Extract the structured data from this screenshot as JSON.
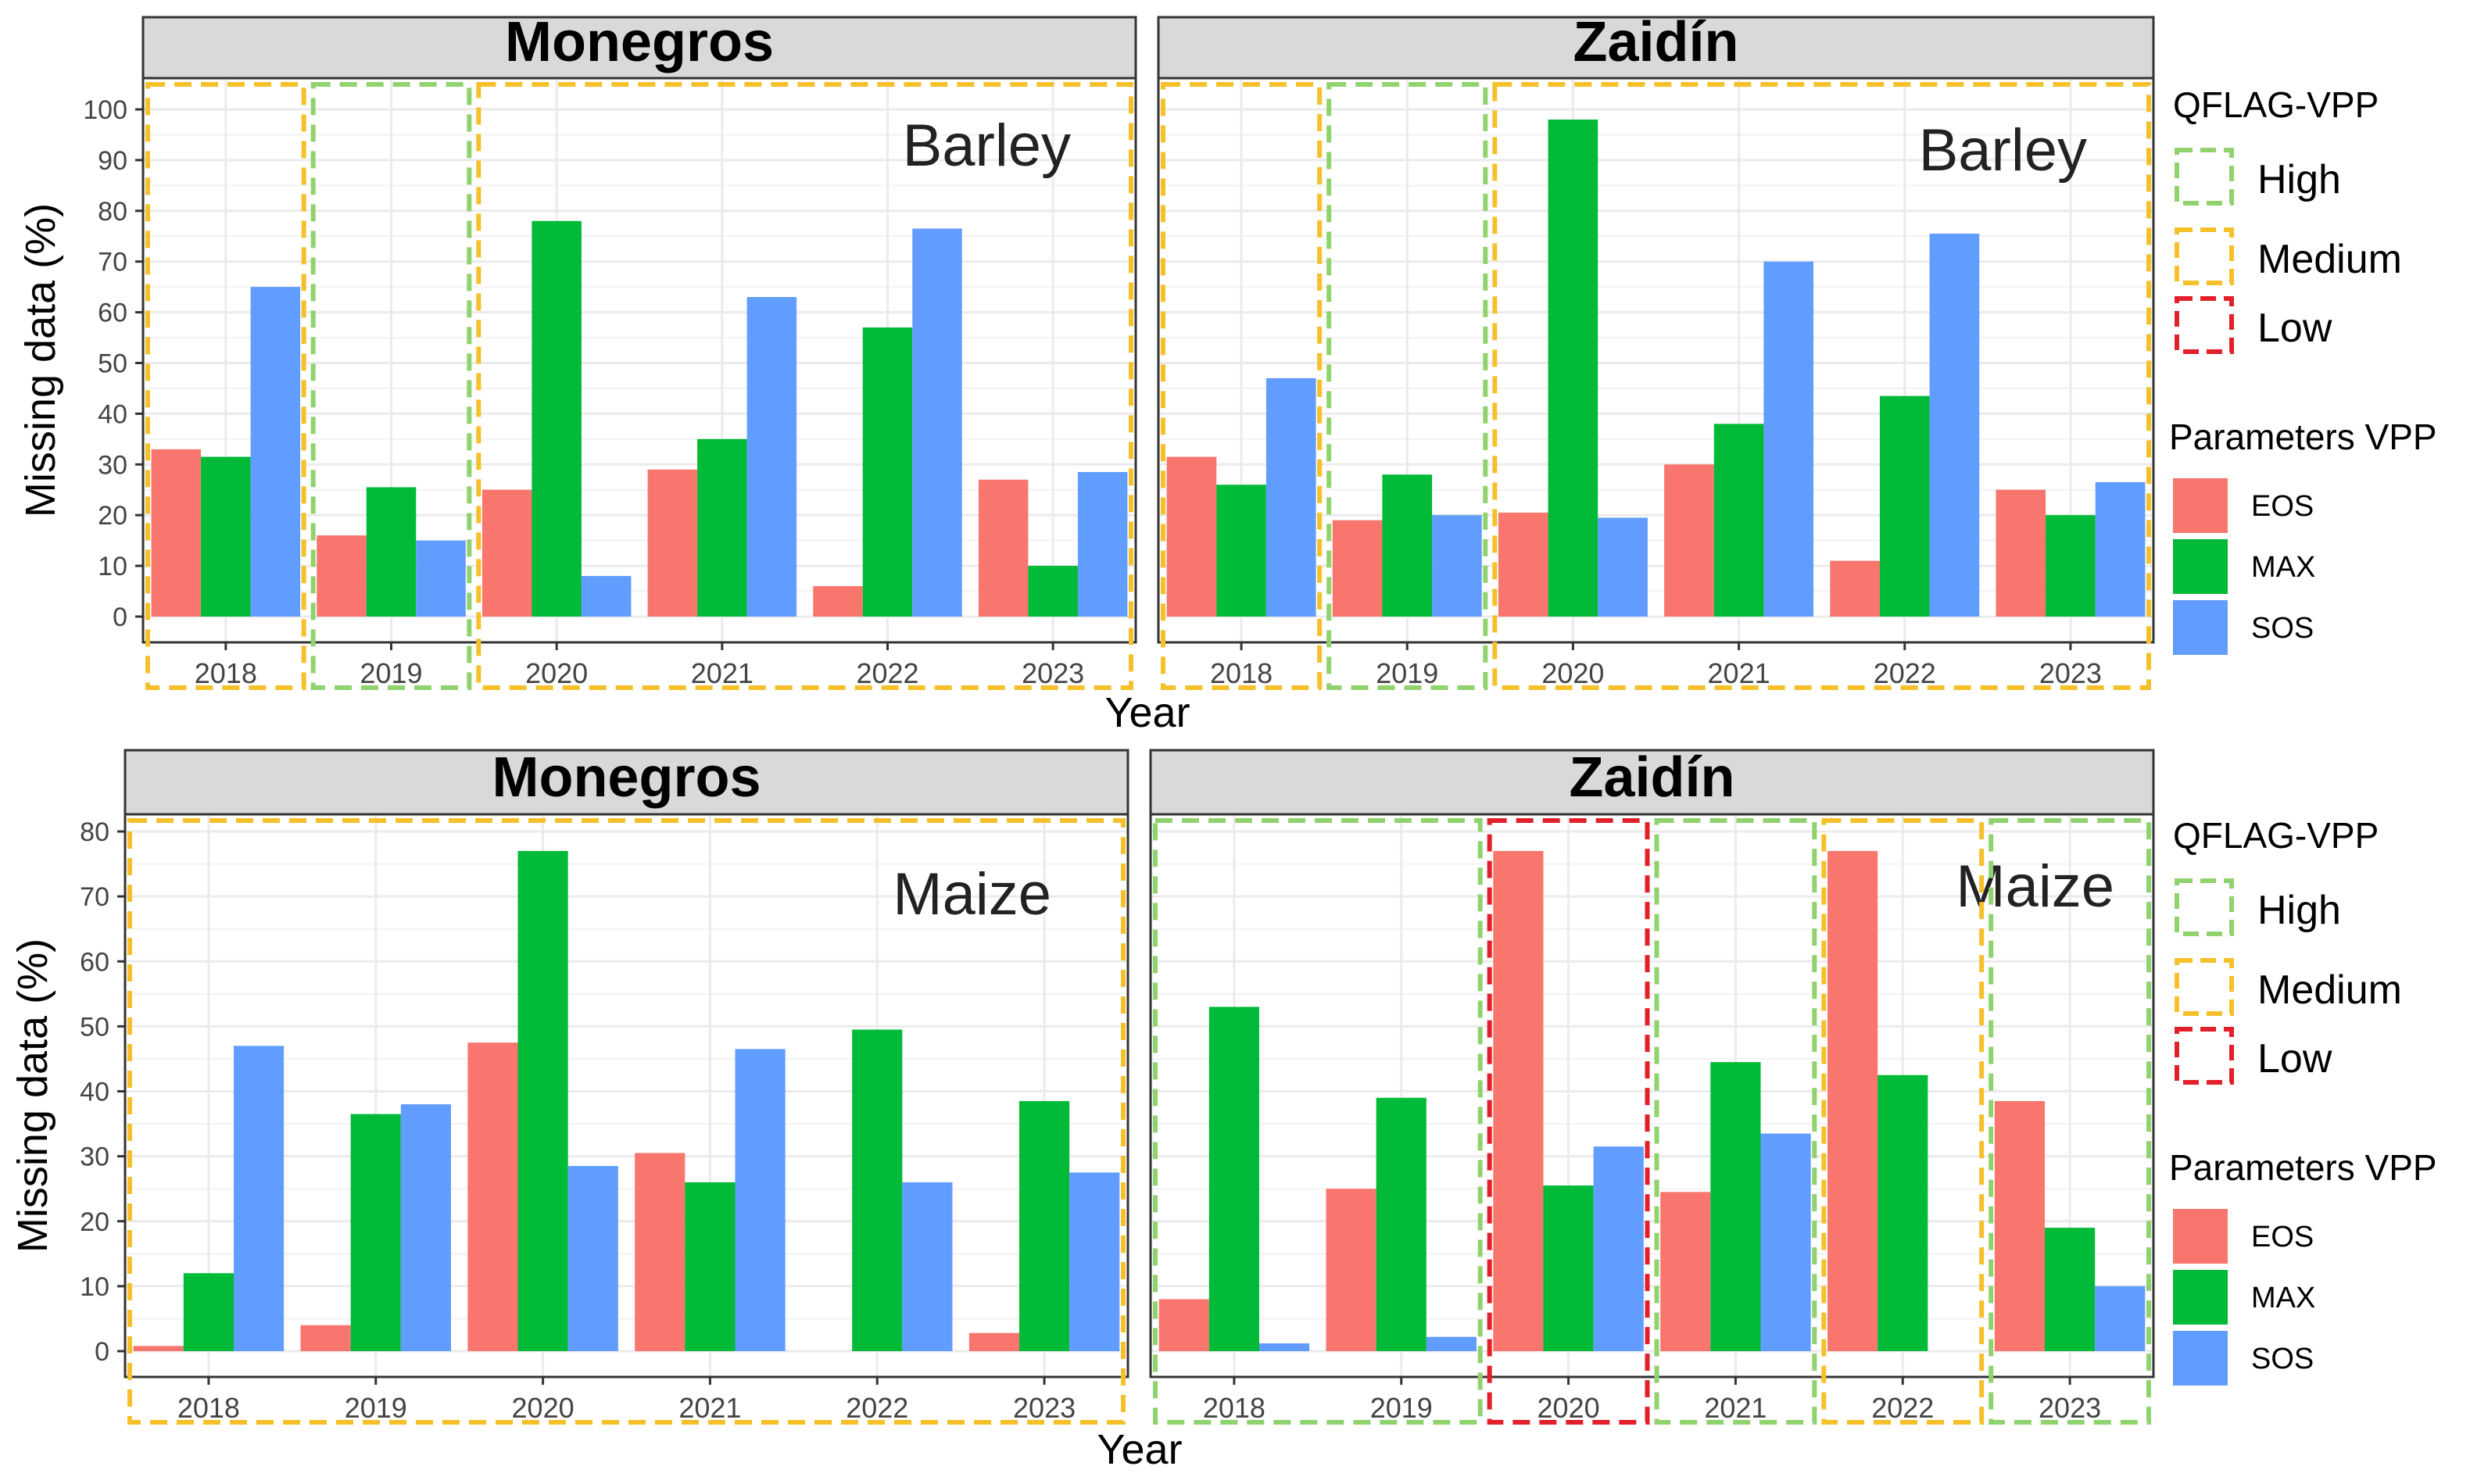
{
  "colors": {
    "EOS": "#F8766D",
    "MAX": "#00BA38",
    "SOS": "#619CFF",
    "High": "#90D26D",
    "Medium": "#F5C02A",
    "Low": "#E2202A",
    "strip_bg": "#D9D9D9",
    "grid": "#EBEBEB"
  },
  "chart_data": [
    {
      "type": "bar",
      "site": "Monegros",
      "crop": "Barley",
      "categories": [
        "2018",
        "2019",
        "2020",
        "2021",
        "2022",
        "2023"
      ],
      "series": [
        {
          "name": "EOS",
          "values": [
            33,
            16,
            25,
            29,
            6,
            27
          ]
        },
        {
          "name": "MAX",
          "values": [
            31.5,
            25.5,
            78,
            35,
            57,
            10
          ]
        },
        {
          "name": "SOS",
          "values": [
            65,
            15,
            8,
            63,
            76.5,
            28.5
          ]
        }
      ],
      "ylim": [
        0,
        100
      ],
      "yticks": [
        "0",
        "10",
        "20",
        "30",
        "40",
        "50",
        "60",
        "70",
        "80",
        "90",
        "100"
      ],
      "ylabel": "Missing data (%)",
      "qflag": [
        {
          "years": [
            "2018",
            "2018"
          ],
          "level": "Medium"
        },
        {
          "years": [
            "2019",
            "2019"
          ],
          "level": "High"
        },
        {
          "years": [
            "2020",
            "2023"
          ],
          "level": "Medium"
        }
      ]
    },
    {
      "type": "bar",
      "site": "Zaidín",
      "crop": "Barley",
      "categories": [
        "2018",
        "2019",
        "2020",
        "2021",
        "2022",
        "2023"
      ],
      "series": [
        {
          "name": "EOS",
          "values": [
            31.5,
            19,
            20.5,
            30,
            11,
            25
          ]
        },
        {
          "name": "MAX",
          "values": [
            26,
            28,
            98,
            38,
            43.5,
            20
          ]
        },
        {
          "name": "SOS",
          "values": [
            47,
            20,
            19.5,
            70,
            75.5,
            26.5
          ]
        }
      ],
      "ylim": [
        0,
        100
      ],
      "yticks": [],
      "qflag": [
        {
          "years": [
            "2018",
            "2018"
          ],
          "level": "Medium"
        },
        {
          "years": [
            "2019",
            "2019"
          ],
          "level": "High"
        },
        {
          "years": [
            "2020",
            "2023"
          ],
          "level": "Medium"
        }
      ]
    },
    {
      "type": "bar",
      "site": "Monegros",
      "crop": "Maize",
      "categories": [
        "2018",
        "2019",
        "2020",
        "2021",
        "2022",
        "2023"
      ],
      "series": [
        {
          "name": "EOS",
          "values": [
            0.8,
            4,
            47.5,
            30.5,
            0,
            2.8
          ]
        },
        {
          "name": "MAX",
          "values": [
            12,
            36.5,
            77,
            26,
            49.5,
            38.5
          ]
        },
        {
          "name": "SOS",
          "values": [
            47,
            38,
            28.5,
            46.5,
            26,
            27.5
          ]
        }
      ],
      "ylim": [
        0,
        80
      ],
      "yticks": [
        "0",
        "10",
        "20",
        "30",
        "40",
        "50",
        "60",
        "70",
        "80"
      ],
      "ylabel": "Missing data (%)",
      "qflag": [
        {
          "years": [
            "2018",
            "2023"
          ],
          "level": "Medium"
        }
      ]
    },
    {
      "type": "bar",
      "site": "Zaidín",
      "crop": "Maize",
      "categories": [
        "2018",
        "2019",
        "2020",
        "2021",
        "2022",
        "2023"
      ],
      "series": [
        {
          "name": "EOS",
          "values": [
            8,
            25,
            77,
            24.5,
            77,
            38.5
          ]
        },
        {
          "name": "MAX",
          "values": [
            53,
            39,
            25.5,
            44.5,
            42.5,
            19
          ]
        },
        {
          "name": "SOS",
          "values": [
            1.2,
            2.2,
            31.5,
            33.5,
            0,
            10
          ]
        }
      ],
      "ylim": [
        0,
        80
      ],
      "yticks": [],
      "qflag": [
        {
          "years": [
            "2018",
            "2019"
          ],
          "level": "High"
        },
        {
          "years": [
            "2020",
            "2020"
          ],
          "level": "Low"
        },
        {
          "years": [
            "2021",
            "2021"
          ],
          "level": "High"
        },
        {
          "years": [
            "2022",
            "2022"
          ],
          "level": "Medium"
        },
        {
          "years": [
            "2023",
            "2023"
          ],
          "level": "High"
        }
      ]
    }
  ],
  "x_axis_label": "Year",
  "legend": {
    "qflag_title": "QFLAG-VPP",
    "qflag_levels": [
      "High",
      "Medium",
      "Low"
    ],
    "param_title": "Parameters VPP",
    "params": [
      "EOS",
      "MAX",
      "SOS"
    ]
  }
}
